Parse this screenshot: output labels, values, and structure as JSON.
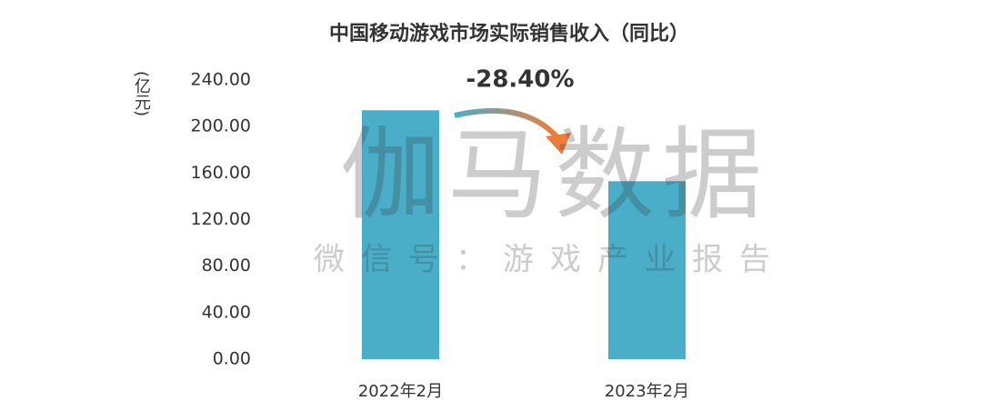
{
  "chart_data": {
    "type": "bar",
    "title": "中国移动游戏市场实际销售收入（同比）",
    "y_label": "(亿元)",
    "annotation": "-28.40%",
    "watermark": "伽马数据",
    "watermark_subtitle": "微信号：游戏产业报告",
    "categories": [
      "2022年2月",
      "2023年2月"
    ],
    "values": [
      214,
      153
    ],
    "color": "#4aaec8",
    "ylim": [
      0,
      240
    ],
    "yticks": [
      {
        "value": 0,
        "label": "0.00"
      },
      {
        "value": 40,
        "label": "40.00"
      },
      {
        "value": 80,
        "label": "80.00"
      },
      {
        "value": 120,
        "label": "120.00"
      },
      {
        "value": 160,
        "label": "160.00"
      },
      {
        "value": 200,
        "label": "200.00"
      },
      {
        "value": 240,
        "label": "240.00"
      }
    ],
    "grid": false
  }
}
